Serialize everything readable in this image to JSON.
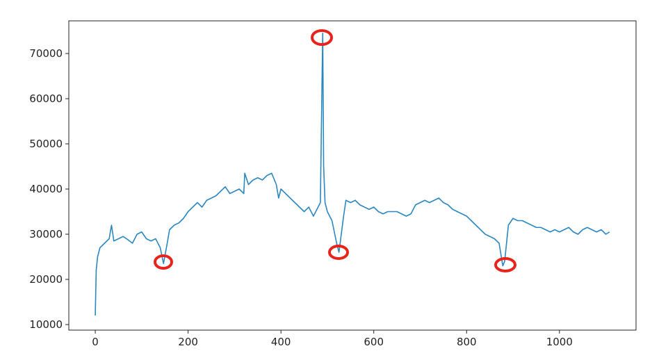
{
  "chart_data": {
    "type": "line",
    "x": [
      0,
      2,
      5,
      10,
      20,
      30,
      35,
      40,
      50,
      60,
      70,
      80,
      90,
      100,
      110,
      120,
      130,
      140,
      147,
      155,
      160,
      170,
      180,
      190,
      200,
      210,
      220,
      230,
      240,
      250,
      260,
      270,
      280,
      290,
      300,
      310,
      320,
      322,
      330,
      340,
      350,
      360,
      370,
      380,
      390,
      395,
      400,
      410,
      420,
      430,
      440,
      450,
      460,
      470,
      480,
      485,
      488,
      490,
      492,
      495,
      500,
      510,
      520,
      525,
      530,
      535,
      540,
      550,
      560,
      570,
      580,
      590,
      600,
      610,
      620,
      630,
      640,
      650,
      660,
      670,
      680,
      690,
      700,
      710,
      720,
      730,
      740,
      750,
      760,
      770,
      780,
      790,
      800,
      810,
      820,
      830,
      840,
      850,
      860,
      870,
      878,
      882,
      890,
      900,
      910,
      920,
      930,
      940,
      950,
      960,
      970,
      980,
      990,
      1000,
      1010,
      1020,
      1030,
      1040,
      1050,
      1060,
      1070,
      1080,
      1090,
      1100,
      1108
    ],
    "series": [
      {
        "color": "#2b87c0",
        "values": [
          12000,
          22000,
          25000,
          27000,
          28000,
          29000,
          32000,
          28500,
          29000,
          29500,
          28800,
          28000,
          30000,
          30500,
          29000,
          28500,
          29000,
          27000,
          23500,
          28000,
          31000,
          32000,
          32500,
          33500,
          35000,
          36000,
          37000,
          36000,
          37500,
          38000,
          38500,
          39500,
          40500,
          39000,
          39500,
          40000,
          39000,
          43500,
          41000,
          42000,
          42500,
          42000,
          43000,
          43500,
          41000,
          38000,
          40000,
          39000,
          38000,
          37000,
          36000,
          35000,
          36000,
          34000,
          36000,
          37000,
          60000,
          74500,
          45000,
          37000,
          35000,
          33000,
          28000,
          26000,
          30000,
          34000,
          37500,
          37000,
          37500,
          36500,
          36000,
          35500,
          36000,
          35000,
          34500,
          35000,
          35000,
          35000,
          34500,
          34000,
          34500,
          36500,
          37000,
          37500,
          37000,
          37500,
          38000,
          37000,
          36500,
          35500,
          35000,
          34500,
          34000,
          33000,
          32000,
          31000,
          30000,
          29500,
          29000,
          28000,
          23000,
          24000,
          32000,
          33500,
          33000,
          33000,
          32500,
          32000,
          31500,
          31500,
          31000,
          30500,
          31000,
          30500,
          31000,
          31500,
          30500,
          30000,
          31000,
          31500,
          31000,
          30500,
          31000,
          30000,
          30500
        ]
      }
    ],
    "xlim": [
      -57,
      1165
    ],
    "ylim": [
      8770,
      77230
    ],
    "xticks": [
      0,
      200,
      400,
      600,
      800,
      1000
    ],
    "yticks": [
      10000,
      20000,
      30000,
      40000,
      50000,
      60000,
      70000
    ]
  }
}
